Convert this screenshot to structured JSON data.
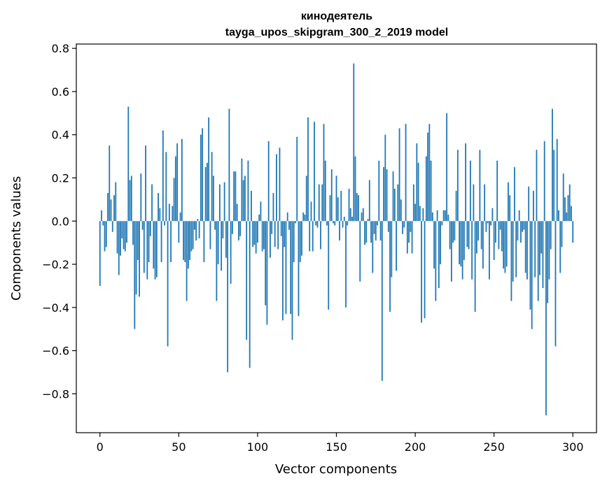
{
  "chart_data": {
    "type": "bar",
    "title": "кинодеятель",
    "subtitle": "tayga_upos_skipgram_300_2_2019 model",
    "xlabel": "Vector components",
    "ylabel": "Components values",
    "xlim": [
      -15,
      315
    ],
    "ylim": [
      -0.98,
      0.82
    ],
    "xticks": [
      0,
      50,
      100,
      150,
      200,
      250,
      300
    ],
    "xtick_labels": [
      "0",
      "50",
      "100",
      "150",
      "200",
      "250",
      "300"
    ],
    "yticks": [
      -0.8,
      -0.6,
      -0.4,
      -0.2,
      0.0,
      0.2,
      0.4,
      0.6,
      0.8
    ],
    "ytick_labels": [
      "−0.8",
      "−0.6",
      "−0.4",
      "−0.2",
      "0.0",
      "0.2",
      "0.4",
      "0.6",
      "0.8"
    ],
    "bar_color": "#1f77b4",
    "grid": false,
    "values": [
      -0.3,
      0.05,
      -0.02,
      -0.14,
      -0.12,
      0.13,
      0.35,
      0.1,
      -0.05,
      0.12,
      0.18,
      -0.15,
      -0.25,
      -0.16,
      -0.08,
      -0.13,
      -0.14,
      -0.1,
      0.53,
      0.19,
      0.21,
      -0.11,
      -0.5,
      -0.34,
      -0.18,
      -0.35,
      0.22,
      -0.04,
      -0.24,
      0.35,
      -0.27,
      -0.19,
      -0.07,
      0.17,
      -0.22,
      -0.27,
      -0.26,
      0.13,
      0.06,
      -0.19,
      0.42,
      -0.02,
      0.32,
      -0.58,
      0.08,
      -0.19,
      0.07,
      0.2,
      0.3,
      0.36,
      -0.1,
      0.04,
      0.38,
      -0.18,
      -0.19,
      -0.37,
      -0.22,
      -0.18,
      -0.14,
      -0.13,
      -0.04,
      -0.09,
      0.01,
      -0.08,
      0.4,
      0.43,
      -0.19,
      0.25,
      0.27,
      0.48,
      -0.13,
      0.32,
      0.21,
      -0.04,
      -0.37,
      -0.2,
      0.17,
      -0.23,
      -0.08,
      0.18,
      -0.17,
      -0.7,
      0.52,
      -0.29,
      -0.06,
      0.23,
      0.23,
      0.08,
      -0.09,
      -0.07,
      0.29,
      0.19,
      0.21,
      -0.55,
      0.28,
      -0.68,
      0.14,
      -0.12,
      -0.11,
      -0.15,
      -0.1,
      0.03,
      0.09,
      -0.14,
      -0.13,
      -0.39,
      -0.48,
      0.37,
      -0.17,
      -0.06,
      0.13,
      -0.12,
      0.31,
      -0.13,
      0.34,
      -0.07,
      -0.46,
      -0.12,
      -0.43,
      0.04,
      -0.04,
      -0.43,
      -0.55,
      -0.19,
      -0.01,
      0.39,
      -0.44,
      -0.19,
      -0.16,
      0.04,
      0.03,
      0.21,
      0.48,
      -0.14,
      0.09,
      -0.14,
      0.46,
      -0.02,
      -0.03,
      0.17,
      -0.13,
      0.17,
      0.45,
      0.28,
      -0.02,
      -0.41,
      0.12,
      0.24,
      -0.01,
      -0.02,
      0.21,
      0.11,
      -0.09,
      0.14,
      -0.03,
      0.02,
      -0.4,
      -0.02,
      0.15,
      0.06,
      0.02,
      0.73,
      0.3,
      0.13,
      0.12,
      -0.28,
      0.04,
      0.06,
      -0.11,
      -0.1,
      0.01,
      0.19,
      -0.1,
      -0.24,
      -0.06,
      -0.09,
      -0.02,
      0.28,
      -0.09,
      -0.74,
      0.25,
      0.4,
      0.24,
      -0.05,
      -0.42,
      -0.26,
      0.23,
      0.15,
      -0.23,
      0.17,
      0.43,
      0.1,
      -0.06,
      -0.03,
      0.45,
      -0.15,
      -0.1,
      -0.05,
      -0.15,
      0.17,
      0.08,
      0.36,
      0.27,
      0.07,
      -0.47,
      0.06,
      -0.45,
      0.3,
      0.41,
      0.45,
      0.28,
      0.04,
      -0.22,
      -0.37,
      0.05,
      -0.31,
      -0.2,
      -0.02,
      0.05,
      0.05,
      0.5,
      0.03,
      -0.13,
      -0.28,
      -0.1,
      -0.09,
      0.14,
      0.33,
      -0.2,
      -0.21,
      -0.27,
      -0.18,
      0.36,
      -0.12,
      -0.13,
      0.28,
      -0.27,
      0.17,
      -0.42,
      -0.15,
      -0.09,
      0.33,
      -0.13,
      -0.22,
      0.17,
      -0.05,
      -0.01,
      -0.27,
      -0.02,
      0.06,
      -0.18,
      -0.1,
      0.28,
      -0.13,
      -0.04,
      -0.14,
      -0.22,
      -0.24,
      -0.21,
      0.18,
      0.12,
      -0.37,
      -0.28,
      0.25,
      -0.26,
      -0.09,
      0.05,
      -0.1,
      -0.05,
      -0.04,
      -0.24,
      -0.27,
      0.16,
      -0.41,
      -0.5,
      0.14,
      -0.26,
      0.33,
      -0.37,
      -0.25,
      -0.15,
      -0.31,
      0.37,
      -0.9,
      -0.38,
      -0.27,
      -0.13,
      0.52,
      0.33,
      -0.58,
      0.38,
      0.05,
      -0.24,
      -0.12,
      0.22,
      0.11,
      0.04,
      0.12,
      0.17,
      0.07,
      -0.1
    ]
  }
}
